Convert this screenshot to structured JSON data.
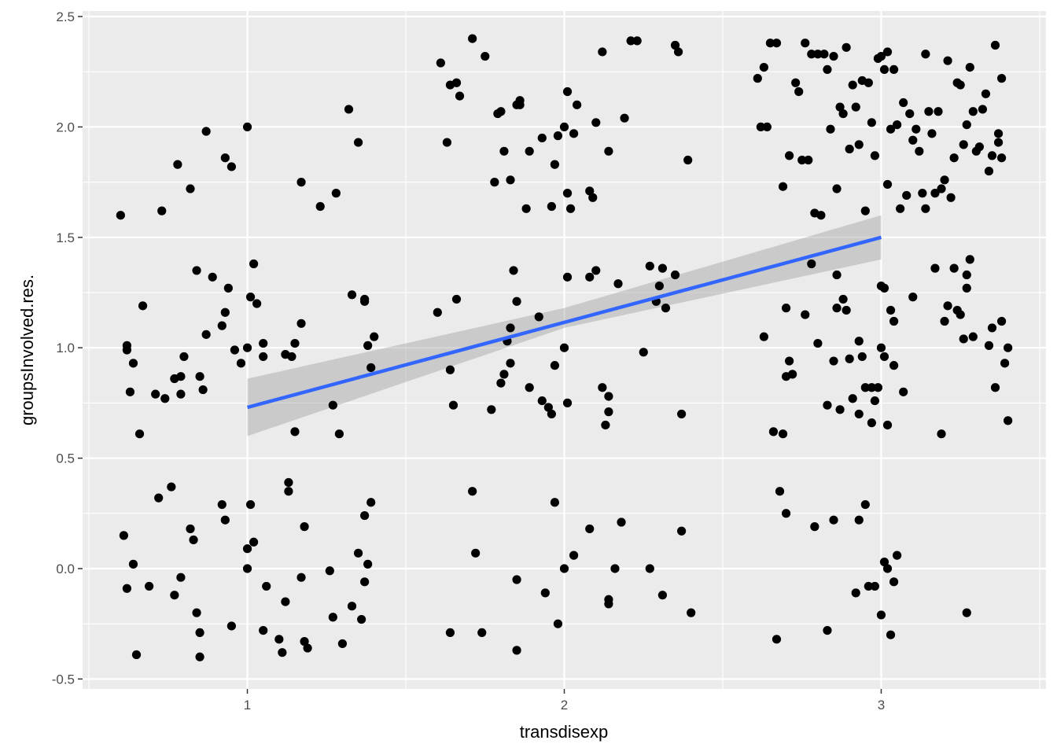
{
  "chart_data": {
    "type": "scatter",
    "xlabel": "transdisexp",
    "ylabel": "groupsInvolved.res.",
    "xlim": [
      0.48,
      3.52
    ],
    "ylim": [
      -0.545,
      2.525
    ],
    "x_ticks": [
      1,
      2,
      3
    ],
    "x_tick_labels": [
      "1",
      "2",
      "3"
    ],
    "y_ticks": [
      -0.5,
      0.0,
      0.5,
      1.0,
      1.5,
      2.0,
      2.5
    ],
    "y_tick_labels": [
      "-0.5",
      "0.0",
      "0.5",
      "1.0",
      "1.5",
      "2.0",
      "2.5"
    ],
    "grid": true,
    "legend": "none",
    "colors": {
      "panel": "#ebebeb",
      "grid": "#ffffff",
      "points": "#000000",
      "fit_line": "#3366ff",
      "ribbon": "#999999"
    },
    "points": [
      [
        0.6,
        1.6
      ],
      [
        0.62,
        1.01
      ],
      [
        0.62,
        0.99
      ],
      [
        0.63,
        0.8
      ],
      [
        0.64,
        0.93
      ],
      [
        0.66,
        0.61
      ],
      [
        0.67,
        1.19
      ],
      [
        0.71,
        0.79
      ],
      [
        0.73,
        1.62
      ],
      [
        0.74,
        0.77
      ],
      [
        0.77,
        0.86
      ],
      [
        0.78,
        1.83
      ],
      [
        0.79,
        0.79
      ],
      [
        0.79,
        0.87
      ],
      [
        0.8,
        0.96
      ],
      [
        0.82,
        1.72
      ],
      [
        0.84,
        1.35
      ],
      [
        0.85,
        0.87
      ],
      [
        0.86,
        0.81
      ],
      [
        0.87,
        1.06
      ],
      [
        0.87,
        1.98
      ],
      [
        0.89,
        1.32
      ],
      [
        0.92,
        1.1
      ],
      [
        0.93,
        1.16
      ],
      [
        0.93,
        1.86
      ],
      [
        0.94,
        1.27
      ],
      [
        0.95,
        1.82
      ],
      [
        0.96,
        0.99
      ],
      [
        0.98,
        0.93
      ],
      [
        1.0,
        1.0
      ],
      [
        1.0,
        2.0
      ],
      [
        1.01,
        1.23
      ],
      [
        1.02,
        1.38
      ],
      [
        1.03,
        1.2
      ],
      [
        1.05,
        1.02
      ],
      [
        1.05,
        0.96
      ],
      [
        1.12,
        0.97
      ],
      [
        1.14,
        0.96
      ],
      [
        1.15,
        1.02
      ],
      [
        1.17,
        1.11
      ],
      [
        1.17,
        1.75
      ],
      [
        1.23,
        1.64
      ],
      [
        1.27,
        0.74
      ],
      [
        1.28,
        1.7
      ],
      [
        1.29,
        0.61
      ],
      [
        1.15,
        0.62
      ],
      [
        1.32,
        2.08
      ],
      [
        1.33,
        1.24
      ],
      [
        1.35,
        1.93
      ],
      [
        1.37,
        1.22
      ],
      [
        1.37,
        1.21
      ],
      [
        1.38,
        1.01
      ],
      [
        1.39,
        0.91
      ],
      [
        1.4,
        1.05
      ],
      [
        0.61,
        0.15
      ],
      [
        0.62,
        -0.09
      ],
      [
        0.64,
        0.02
      ],
      [
        0.65,
        -0.39
      ],
      [
        0.69,
        -0.08
      ],
      [
        0.72,
        0.32
      ],
      [
        0.76,
        0.37
      ],
      [
        0.77,
        -0.12
      ],
      [
        0.79,
        -0.04
      ],
      [
        0.82,
        0.18
      ],
      [
        0.83,
        0.13
      ],
      [
        0.84,
        -0.2
      ],
      [
        0.85,
        -0.29
      ],
      [
        0.85,
        -0.4
      ],
      [
        0.92,
        0.29
      ],
      [
        0.93,
        0.22
      ],
      [
        0.95,
        -0.26
      ],
      [
        1.0,
        0.0
      ],
      [
        1.0,
        0.09
      ],
      [
        1.01,
        0.29
      ],
      [
        1.02,
        0.12
      ],
      [
        1.05,
        -0.28
      ],
      [
        1.06,
        -0.08
      ],
      [
        1.1,
        -0.32
      ],
      [
        1.11,
        -0.38
      ],
      [
        1.12,
        -0.15
      ],
      [
        1.13,
        0.39
      ],
      [
        1.13,
        0.35
      ],
      [
        1.17,
        -0.04
      ],
      [
        1.18,
        0.19
      ],
      [
        1.18,
        -0.33
      ],
      [
        1.19,
        -0.36
      ],
      [
        1.26,
        -0.01
      ],
      [
        1.27,
        -0.22
      ],
      [
        1.3,
        -0.34
      ],
      [
        1.33,
        -0.17
      ],
      [
        1.35,
        0.07
      ],
      [
        1.36,
        -0.23
      ],
      [
        1.37,
        -0.06
      ],
      [
        1.37,
        0.24
      ],
      [
        1.38,
        0.02
      ],
      [
        1.39,
        0.3
      ],
      [
        1.61,
        2.29
      ],
      [
        1.63,
        1.93
      ],
      [
        1.64,
        2.19
      ],
      [
        1.66,
        2.2
      ],
      [
        1.67,
        2.14
      ],
      [
        1.71,
        2.4
      ],
      [
        1.75,
        2.32
      ],
      [
        1.78,
        1.75
      ],
      [
        1.79,
        2.06
      ],
      [
        1.8,
        2.07
      ],
      [
        1.81,
        1.89
      ],
      [
        1.83,
        1.76
      ],
      [
        1.85,
        2.1
      ],
      [
        1.86,
        2.12
      ],
      [
        1.86,
        2.1
      ],
      [
        1.88,
        1.63
      ],
      [
        1.89,
        1.89
      ],
      [
        1.93,
        1.95
      ],
      [
        1.96,
        1.64
      ],
      [
        1.97,
        1.83
      ],
      [
        1.98,
        1.96
      ],
      [
        2.0,
        2.0
      ],
      [
        2.01,
        1.7
      ],
      [
        2.01,
        2.16
      ],
      [
        2.02,
        1.63
      ],
      [
        2.03,
        1.97
      ],
      [
        2.04,
        2.1
      ],
      [
        2.08,
        1.71
      ],
      [
        2.09,
        1.68
      ],
      [
        2.1,
        2.02
      ],
      [
        2.12,
        2.34
      ],
      [
        2.14,
        1.89
      ],
      [
        2.19,
        2.04
      ],
      [
        2.21,
        2.39
      ],
      [
        2.23,
        2.39
      ],
      [
        2.35,
        2.37
      ],
      [
        2.36,
        2.34
      ],
      [
        2.39,
        1.85
      ],
      [
        1.6,
        1.16
      ],
      [
        1.64,
        0.9
      ],
      [
        1.65,
        0.74
      ],
      [
        1.66,
        1.22
      ],
      [
        1.77,
        0.72
      ],
      [
        1.8,
        0.84
      ],
      [
        1.81,
        0.88
      ],
      [
        1.82,
        1.03
      ],
      [
        1.83,
        0.93
      ],
      [
        1.83,
        1.09
      ],
      [
        1.84,
        1.35
      ],
      [
        1.85,
        1.21
      ],
      [
        1.89,
        0.82
      ],
      [
        1.92,
        1.14
      ],
      [
        1.93,
        0.76
      ],
      [
        1.95,
        0.73
      ],
      [
        1.96,
        0.7
      ],
      [
        1.97,
        0.92
      ],
      [
        2.0,
        1.0
      ],
      [
        2.01,
        0.75
      ],
      [
        2.01,
        1.32
      ],
      [
        2.08,
        1.32
      ],
      [
        2.1,
        1.35
      ],
      [
        2.12,
        0.82
      ],
      [
        2.13,
        0.65
      ],
      [
        2.14,
        0.78
      ],
      [
        2.14,
        0.71
      ],
      [
        2.17,
        1.29
      ],
      [
        2.25,
        0.98
      ],
      [
        2.27,
        1.37
      ],
      [
        2.29,
        1.21
      ],
      [
        2.3,
        1.28
      ],
      [
        2.31,
        1.36
      ],
      [
        2.32,
        1.18
      ],
      [
        2.35,
        1.33
      ],
      [
        2.37,
        0.7
      ],
      [
        1.64,
        -0.29
      ],
      [
        1.71,
        0.35
      ],
      [
        1.72,
        0.07
      ],
      [
        1.74,
        -0.29
      ],
      [
        1.85,
        -0.37
      ],
      [
        1.85,
        -0.05
      ],
      [
        1.94,
        -0.11
      ],
      [
        1.97,
        0.3
      ],
      [
        1.98,
        -0.25
      ],
      [
        2.0,
        0.0
      ],
      [
        2.03,
        0.06
      ],
      [
        2.08,
        0.18
      ],
      [
        2.14,
        -0.14
      ],
      [
        2.14,
        -0.16
      ],
      [
        2.16,
        0.0
      ],
      [
        2.18,
        0.21
      ],
      [
        2.27,
        0.0
      ],
      [
        2.31,
        -0.12
      ],
      [
        2.37,
        0.17
      ],
      [
        2.4,
        -0.2
      ],
      [
        2.61,
        2.22
      ],
      [
        2.62,
        2.0
      ],
      [
        2.63,
        2.27
      ],
      [
        2.64,
        2.0
      ],
      [
        2.65,
        2.38
      ],
      [
        2.67,
        2.38
      ],
      [
        2.69,
        1.73
      ],
      [
        2.71,
        1.87
      ],
      [
        2.73,
        2.2
      ],
      [
        2.74,
        2.16
      ],
      [
        2.75,
        1.85
      ],
      [
        2.76,
        2.38
      ],
      [
        2.77,
        1.85
      ],
      [
        2.78,
        2.33
      ],
      [
        2.79,
        1.61
      ],
      [
        2.8,
        2.33
      ],
      [
        2.81,
        1.6
      ],
      [
        2.82,
        2.33
      ],
      [
        2.83,
        2.26
      ],
      [
        2.84,
        1.99
      ],
      [
        2.85,
        2.32
      ],
      [
        2.86,
        1.72
      ],
      [
        2.87,
        2.09
      ],
      [
        2.88,
        2.06
      ],
      [
        2.89,
        2.36
      ],
      [
        2.9,
        1.9
      ],
      [
        2.91,
        2.19
      ],
      [
        2.92,
        2.09
      ],
      [
        2.93,
        1.92
      ],
      [
        2.94,
        2.21
      ],
      [
        2.95,
        1.62
      ],
      [
        2.96,
        2.2
      ],
      [
        2.97,
        2.02
      ],
      [
        2.98,
        1.87
      ],
      [
        2.99,
        2.31
      ],
      [
        3.0,
        2.32
      ],
      [
        3.01,
        2.26
      ],
      [
        3.02,
        2.34
      ],
      [
        3.02,
        1.74
      ],
      [
        3.03,
        1.99
      ],
      [
        3.04,
        2.26
      ],
      [
        3.05,
        2.01
      ],
      [
        3.06,
        1.63
      ],
      [
        3.07,
        2.11
      ],
      [
        3.08,
        1.69
      ],
      [
        3.09,
        2.06
      ],
      [
        3.1,
        1.94
      ],
      [
        3.11,
        1.99
      ],
      [
        3.12,
        1.89
      ],
      [
        3.13,
        1.7
      ],
      [
        3.14,
        2.33
      ],
      [
        3.14,
        1.63
      ],
      [
        3.15,
        2.07
      ],
      [
        3.16,
        1.97
      ],
      [
        3.17,
        1.7
      ],
      [
        3.18,
        2.07
      ],
      [
        3.19,
        1.72
      ],
      [
        3.2,
        1.76
      ],
      [
        3.21,
        2.3
      ],
      [
        3.22,
        1.68
      ],
      [
        3.23,
        1.86
      ],
      [
        3.24,
        2.2
      ],
      [
        3.25,
        2.19
      ],
      [
        3.26,
        1.92
      ],
      [
        3.27,
        2.01
      ],
      [
        3.28,
        2.27
      ],
      [
        3.29,
        2.07
      ],
      [
        3.3,
        1.89
      ],
      [
        3.31,
        1.91
      ],
      [
        3.32,
        2.08
      ],
      [
        3.33,
        2.15
      ],
      [
        3.34,
        1.8
      ],
      [
        3.35,
        1.87
      ],
      [
        3.36,
        2.37
      ],
      [
        3.37,
        1.97
      ],
      [
        3.37,
        1.93
      ],
      [
        3.38,
        2.22
      ],
      [
        3.38,
        1.86
      ],
      [
        2.63,
        1.05
      ],
      [
        2.66,
        0.62
      ],
      [
        2.69,
        0.61
      ],
      [
        2.7,
        0.87
      ],
      [
        2.7,
        1.18
      ],
      [
        2.71,
        0.94
      ],
      [
        2.72,
        0.88
      ],
      [
        2.76,
        1.15
      ],
      [
        2.78,
        1.38
      ],
      [
        2.8,
        1.02
      ],
      [
        2.83,
        0.74
      ],
      [
        2.85,
        0.94
      ],
      [
        2.86,
        1.18
      ],
      [
        2.86,
        1.33
      ],
      [
        2.87,
        0.72
      ],
      [
        2.88,
        1.22
      ],
      [
        2.89,
        1.17
      ],
      [
        2.9,
        0.95
      ],
      [
        2.91,
        0.77
      ],
      [
        2.93,
        1.03
      ],
      [
        2.95,
        0.82
      ],
      [
        2.97,
        0.82
      ],
      [
        2.98,
        0.76
      ],
      [
        2.99,
        0.82
      ],
      [
        3.0,
        1.0
      ],
      [
        3.0,
        1.28
      ],
      [
        3.01,
        0.96
      ],
      [
        3.01,
        1.27
      ],
      [
        3.02,
        0.65
      ],
      [
        3.03,
        1.17
      ],
      [
        3.04,
        0.92
      ],
      [
        3.04,
        1.12
      ],
      [
        3.07,
        0.8
      ],
      [
        3.1,
        1.23
      ],
      [
        3.17,
        1.36
      ],
      [
        3.19,
        0.61
      ],
      [
        3.2,
        1.12
      ],
      [
        3.21,
        1.19
      ],
      [
        3.23,
        1.36
      ],
      [
        3.24,
        1.17
      ],
      [
        3.25,
        1.15
      ],
      [
        3.26,
        1.04
      ],
      [
        3.27,
        1.33
      ],
      [
        3.27,
        1.27
      ],
      [
        3.28,
        1.4
      ],
      [
        3.29,
        1.05
      ],
      [
        3.34,
        1.01
      ],
      [
        3.35,
        1.09
      ],
      [
        3.36,
        0.82
      ],
      [
        3.38,
        1.12
      ],
      [
        3.39,
        0.93
      ],
      [
        3.4,
        1.0
      ],
      [
        3.4,
        0.67
      ],
      [
        2.97,
        0.66
      ],
      [
        2.93,
        0.7
      ],
      [
        2.94,
        0.96
      ],
      [
        2.67,
        -0.32
      ],
      [
        2.68,
        0.35
      ],
      [
        2.7,
        0.25
      ],
      [
        2.79,
        0.19
      ],
      [
        2.83,
        -0.28
      ],
      [
        2.85,
        0.22
      ],
      [
        2.92,
        -0.11
      ],
      [
        2.93,
        0.22
      ],
      [
        2.95,
        0.29
      ],
      [
        2.96,
        -0.08
      ],
      [
        2.98,
        -0.08
      ],
      [
        3.0,
        -0.21
      ],
      [
        3.01,
        0.03
      ],
      [
        3.02,
        0.0
      ],
      [
        3.03,
        -0.3
      ],
      [
        3.04,
        -0.06
      ],
      [
        3.05,
        0.06
      ],
      [
        3.27,
        -0.2
      ]
    ],
    "fit_line": {
      "x": [
        1,
        3
      ],
      "y": [
        0.73,
        1.5
      ]
    },
    "ribbon": {
      "x": [
        1,
        2,
        3
      ],
      "lower": [
        0.6,
        1.09,
        1.4
      ],
      "upper": [
        0.86,
        1.18,
        1.6
      ]
    }
  }
}
